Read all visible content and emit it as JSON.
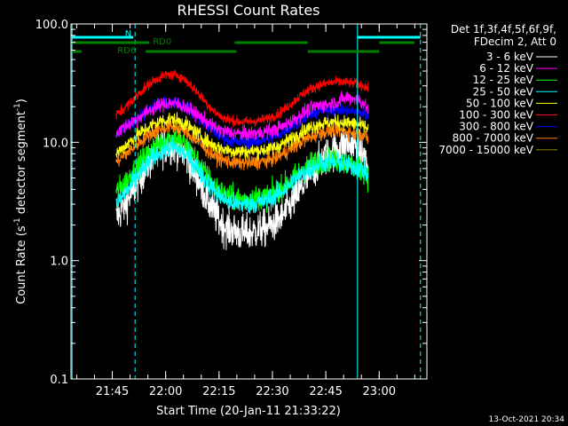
{
  "chart_data": {
    "type": "line",
    "title": "RHESSI Count Rates",
    "xlabel": "Start Time (20-Jan-11 21:33:22)",
    "ylabel_parts": [
      "Count Rate (s",
      "-1",
      " detector segment",
      "-1",
      ")"
    ],
    "y_scale": "log",
    "ylim": [
      0.1,
      100.0
    ],
    "yticks": [
      {
        "value": 0.1,
        "label": "0.1"
      },
      {
        "value": 1.0,
        "label": "1.0"
      },
      {
        "value": 10.0,
        "label": "10.0"
      },
      {
        "value": 100.0,
        "label": "100.0"
      }
    ],
    "xlim_minutes": [
      0,
      100
    ],
    "xticks": [
      {
        "t": 11.6,
        "label": "21:45"
      },
      {
        "t": 26.6,
        "label": "22:00"
      },
      {
        "t": 41.6,
        "label": "22:15"
      },
      {
        "t": 56.6,
        "label": "22:30"
      },
      {
        "t": 71.6,
        "label": "22:45"
      },
      {
        "t": 86.6,
        "label": "23:00"
      }
    ],
    "legend_header": [
      "Det 1f,3f,4f,5f,6f,9f,",
      "FDecim 2, Att 0"
    ],
    "x_minutes": [
      12.7,
      15,
      17.5,
      20,
      22.5,
      25,
      27.5,
      30,
      32.5,
      35,
      37.5,
      40,
      42.5,
      45,
      47.5,
      50,
      52.5,
      55,
      57.5,
      60,
      62.5,
      65,
      67.5,
      70,
      72.5,
      75,
      77.5,
      80,
      82.5,
      83.5
    ],
    "series": [
      {
        "name": "3 - 6 keV",
        "color": "#ffffff",
        "noise": 0.18,
        "values": [
          2.3,
          2.9,
          3.9,
          5.4,
          7.2,
          8.8,
          9.6,
          9.1,
          7.5,
          5.4,
          3.7,
          2.6,
          2.0,
          1.8,
          1.7,
          1.7,
          1.8,
          1.9,
          2.1,
          2.5,
          3.2,
          4.2,
          5.5,
          6.8,
          8.0,
          9.0,
          9.6,
          9.5,
          7.5,
          6.0
        ]
      },
      {
        "name": "6 - 12 keV",
        "color": "#ff00ff",
        "noise": 0.07,
        "values": [
          12.0,
          13.5,
          15.0,
          17.0,
          19.0,
          20.5,
          21.5,
          21.0,
          19.5,
          17.5,
          15.5,
          13.5,
          12.5,
          12.0,
          11.8,
          11.8,
          12.0,
          12.3,
          12.8,
          13.8,
          15.5,
          17.5,
          19.5,
          20.5,
          21.0,
          22.0,
          24.0,
          23.5,
          21.0,
          19.0
        ]
      },
      {
        "name": "12 - 25 keV",
        "color": "#00ff00",
        "noise": 0.12,
        "values": [
          3.8,
          4.5,
          5.6,
          7.0,
          8.6,
          10.0,
          10.8,
          10.5,
          9.2,
          7.4,
          5.6,
          4.4,
          3.7,
          3.4,
          3.3,
          3.3,
          3.4,
          3.5,
          3.8,
          4.3,
          5.0,
          5.8,
          6.6,
          7.0,
          7.2,
          7.0,
          6.6,
          6.2,
          5.8,
          5.0
        ]
      },
      {
        "name": "25 - 50 keV",
        "color": "#00ffff",
        "noise": 0.1,
        "values": [
          3.0,
          3.6,
          4.6,
          5.8,
          7.2,
          8.3,
          9.0,
          8.8,
          7.8,
          6.4,
          5.0,
          4.0,
          3.4,
          3.1,
          3.0,
          3.0,
          3.1,
          3.2,
          3.5,
          4.0,
          4.7,
          5.4,
          6.1,
          6.6,
          6.8,
          6.7,
          6.4,
          6.2,
          5.8,
          5.0
        ]
      },
      {
        "name": "50 - 100 keV",
        "color": "#ffff00",
        "noise": 0.07,
        "values": [
          8.0,
          9.2,
          10.8,
          12.3,
          13.8,
          15.0,
          15.6,
          15.3,
          14.0,
          12.2,
          10.6,
          9.4,
          8.8,
          8.5,
          8.4,
          8.4,
          8.5,
          8.7,
          9.1,
          9.9,
          11.0,
          12.3,
          13.5,
          14.3,
          14.7,
          14.9,
          14.6,
          14.3,
          13.6,
          12.8
        ]
      },
      {
        "name": "100 - 300 keV",
        "color": "#ff0000",
        "noise": 0.05,
        "values": [
          17.0,
          19.5,
          23.0,
          27.5,
          32.0,
          35.5,
          37.5,
          36.8,
          33.0,
          27.5,
          22.5,
          18.5,
          16.2,
          15.3,
          14.9,
          14.9,
          15.2,
          15.8,
          17.0,
          19.0,
          22.0,
          25.5,
          28.5,
          30.5,
          31.8,
          32.3,
          32.0,
          31.5,
          30.0,
          28.0
        ]
      },
      {
        "name": "300 - 800 keV",
        "color": "#0000ff",
        "noise": 0.06,
        "values": [
          11.5,
          13.0,
          15.0,
          17.0,
          19.3,
          21.0,
          22.0,
          21.5,
          19.8,
          17.0,
          14.5,
          12.5,
          11.0,
          10.3,
          10.0,
          10.0,
          10.2,
          10.6,
          11.3,
          12.5,
          14.0,
          15.8,
          17.3,
          18.3,
          18.8,
          19.0,
          18.6,
          18.2,
          17.5,
          16.5
        ]
      },
      {
        "name": "800 - 7000 keV",
        "color": "#ff8000",
        "noise": 0.07,
        "values": [
          6.8,
          7.8,
          9.0,
          10.4,
          11.8,
          12.9,
          13.5,
          13.2,
          12.0,
          10.5,
          9.0,
          7.8,
          7.1,
          6.8,
          6.7,
          6.7,
          6.8,
          7.0,
          7.4,
          8.1,
          9.1,
          10.2,
          11.2,
          12.0,
          12.4,
          12.6,
          12.3,
          12.0,
          11.4,
          10.6
        ]
      },
      {
        "name": "7000 - 15000 keV",
        "color": "#808000",
        "noise": 0.05,
        "values": []
      }
    ],
    "vertical_markers": [
      {
        "t": 0.3,
        "style": "solid"
      },
      {
        "t": 18.0,
        "style": "dashed"
      },
      {
        "t": 80.5,
        "style": "solid"
      },
      {
        "t": 98.2,
        "style": "dashed"
      }
    ],
    "flags": [
      {
        "label": "N",
        "color": "#00ffff",
        "segments": [
          [
            0.3,
            17.5
          ],
          [
            80.5,
            98.2
          ]
        ]
      },
      {
        "label": "RD0",
        "color": "#008000",
        "segments": [
          [
            0.3,
            22
          ],
          [
            46,
            66.5
          ],
          [
            86.6,
            96.5
          ]
        ]
      },
      {
        "label": "RD6",
        "color": "#008000",
        "segments": [
          [
            0.3,
            3
          ],
          [
            21,
            46.5
          ],
          [
            66.5,
            86.6
          ]
        ]
      }
    ],
    "footer_timestamp": "13-Oct-2021 20:34"
  }
}
